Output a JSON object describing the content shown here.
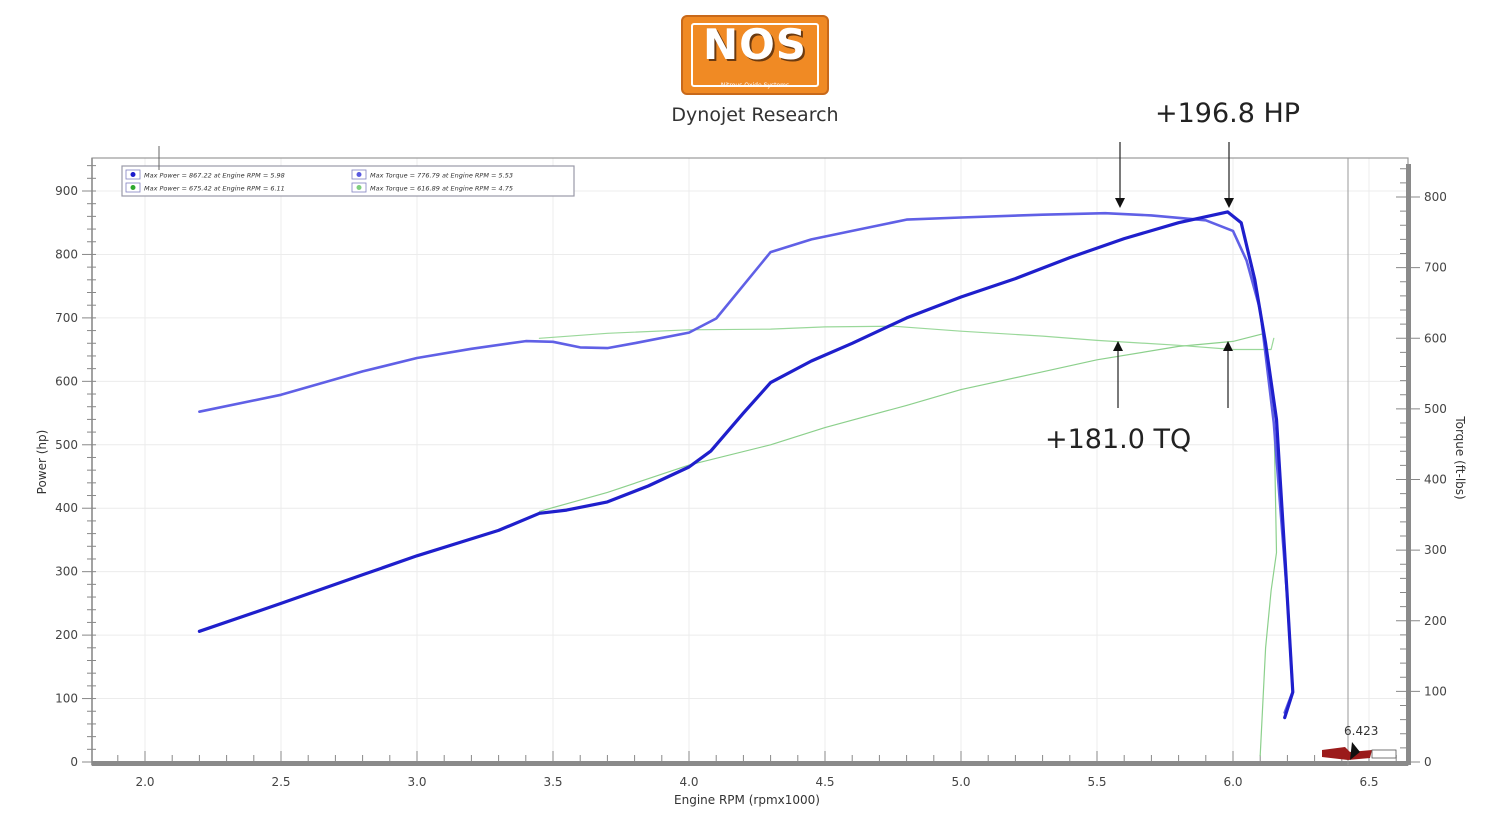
{
  "header": {
    "logo_text": "NOS",
    "logo_subtext": "Nitrous Oxide Systems",
    "title": "Dynojet Research"
  },
  "annotations": {
    "hp_gain": "+196.8 HP",
    "tq_gain": "+181.0 TQ",
    "cursor_value": "6.423"
  },
  "legend": [
    {
      "color": "#1a1acc",
      "text": "Max Power = 867.22 at Engine RPM = 5.98"
    },
    {
      "color": "#5a5ae0",
      "text": "Max Torque = 776.79 at Engine RPM = 5.53"
    },
    {
      "color": "#2fa82f",
      "text": "Max Power = 675.42 at Engine RPM = 6.11"
    },
    {
      "color": "#7fcf7f",
      "text": "Max Torque = 616.89 at Engine RPM = 4.75"
    }
  ],
  "colors": {
    "power_nitrous": "#1f1fcc",
    "torque_nitrous": "#6060e6",
    "power_baseline": "#8cd08c",
    "torque_baseline": "#9ad89a",
    "logo_orange": "#f08a24",
    "cursor_marker": "#9b1b1b"
  },
  "chart_data": {
    "type": "line",
    "title": "Dynojet Research",
    "xlabel": "Engine RPM (rpmx1000)",
    "ylabel": "Power (hp)",
    "y2label": "Torque (ft-lbs)",
    "xlim": [
      1.8,
      6.65
    ],
    "ylim": [
      0,
      950
    ],
    "y2lim": [
      0,
      850
    ],
    "x_ticks": [
      "2.0",
      "2.5",
      "3.0",
      "3.5",
      "4.0",
      "4.5",
      "5.0",
      "5.5",
      "6.0",
      "6.5"
    ],
    "y_ticks": [
      "0",
      "100",
      "200",
      "300",
      "400",
      "500",
      "600",
      "700",
      "800",
      "900"
    ],
    "y2_ticks": [
      "0",
      "100",
      "200",
      "300",
      "400",
      "500",
      "600",
      "700",
      "800"
    ],
    "grid": true,
    "legend_position": "top-left",
    "series": [
      {
        "name": "Max Power = 867.22 at Engine RPM = 5.98",
        "axis": "left",
        "points": [
          [
            2.2,
            206
          ],
          [
            2.5,
            250
          ],
          [
            2.8,
            295
          ],
          [
            3.0,
            325
          ],
          [
            3.3,
            365
          ],
          [
            3.45,
            392
          ],
          [
            3.55,
            397
          ],
          [
            3.7,
            410
          ],
          [
            3.85,
            435
          ],
          [
            4.0,
            465
          ],
          [
            4.08,
            490
          ],
          [
            4.2,
            550
          ],
          [
            4.3,
            598
          ],
          [
            4.45,
            632
          ],
          [
            4.6,
            660
          ],
          [
            4.8,
            700
          ],
          [
            5.0,
            733
          ],
          [
            5.2,
            762
          ],
          [
            5.4,
            795
          ],
          [
            5.6,
            825
          ],
          [
            5.8,
            850
          ],
          [
            5.98,
            867
          ],
          [
            6.03,
            850
          ],
          [
            6.08,
            760
          ],
          [
            6.12,
            660
          ],
          [
            6.16,
            540
          ],
          [
            6.19,
            330
          ],
          [
            6.22,
            110
          ],
          [
            6.19,
            70
          ]
        ]
      },
      {
        "name": "Max Torque = 776.79 at Engine RPM = 5.53",
        "axis": "right",
        "points": [
          [
            2.2,
            496
          ],
          [
            2.5,
            520
          ],
          [
            2.8,
            553
          ],
          [
            3.0,
            572
          ],
          [
            3.2,
            585
          ],
          [
            3.4,
            596
          ],
          [
            3.5,
            595
          ],
          [
            3.6,
            587
          ],
          [
            3.7,
            586
          ],
          [
            3.8,
            593
          ],
          [
            4.0,
            608
          ],
          [
            4.1,
            628
          ],
          [
            4.2,
            675
          ],
          [
            4.3,
            722
          ],
          [
            4.45,
            740
          ],
          [
            4.6,
            752
          ],
          [
            4.8,
            768
          ],
          [
            5.0,
            771
          ],
          [
            5.3,
            775
          ],
          [
            5.53,
            777
          ],
          [
            5.7,
            774
          ],
          [
            5.9,
            767
          ],
          [
            6.0,
            752
          ],
          [
            6.05,
            710
          ],
          [
            6.1,
            640
          ],
          [
            6.15,
            480
          ],
          [
            6.2,
            230
          ],
          [
            6.22,
            100
          ],
          [
            6.19,
            70
          ]
        ]
      },
      {
        "name": "Max Power = 675.42 at Engine RPM = 6.11",
        "axis": "left",
        "points": [
          [
            3.45,
            395
          ],
          [
            3.7,
            425
          ],
          [
            4.0,
            468
          ],
          [
            4.3,
            500
          ],
          [
            4.5,
            527
          ],
          [
            4.8,
            562
          ],
          [
            5.0,
            587
          ],
          [
            5.3,
            615
          ],
          [
            5.5,
            634
          ],
          [
            5.8,
            655
          ],
          [
            6.0,
            663
          ],
          [
            6.11,
            675
          ],
          [
            6.15,
            560
          ],
          [
            6.16,
            330
          ],
          [
            6.14,
            270
          ],
          [
            6.12,
            180
          ],
          [
            6.1,
            10
          ]
        ]
      },
      {
        "name": "Max Torque = 616.89 at Engine RPM = 4.75",
        "axis": "right",
        "points": [
          [
            3.45,
            600
          ],
          [
            3.7,
            607
          ],
          [
            4.0,
            612
          ],
          [
            4.3,
            613
          ],
          [
            4.5,
            616
          ],
          [
            4.75,
            617
          ],
          [
            5.0,
            610
          ],
          [
            5.3,
            603
          ],
          [
            5.5,
            597
          ],
          [
            5.8,
            590
          ],
          [
            6.0,
            584
          ],
          [
            6.14,
            584
          ],
          [
            6.15,
            600
          ]
        ]
      }
    ],
    "annotations": [
      {
        "text": "+196.8 HP",
        "arrows_at_rpm": [
          5.6,
          5.98
        ]
      },
      {
        "text": "+181.0 TQ",
        "arrows_at_rpm": [
          5.6,
          5.98
        ]
      },
      {
        "text": "6.423",
        "type": "cursor"
      }
    ]
  }
}
